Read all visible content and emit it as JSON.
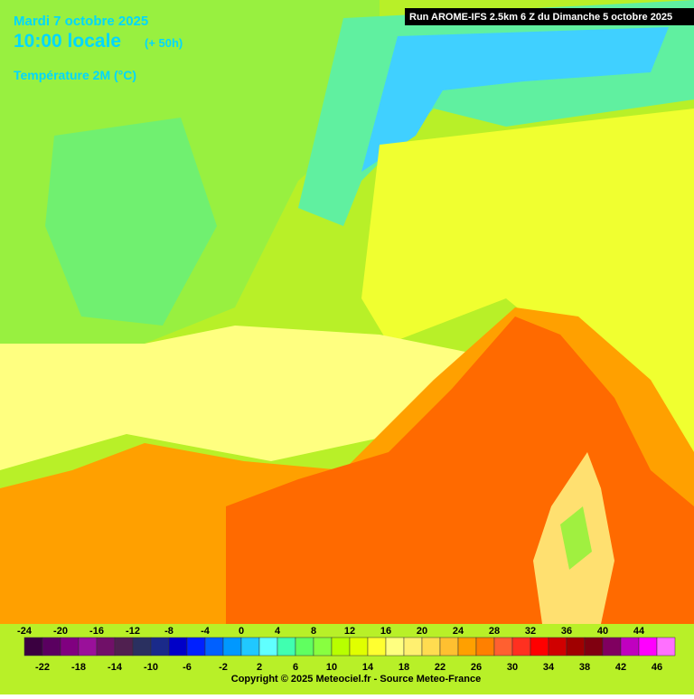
{
  "header": {
    "date": "Mardi 7 octobre 2025",
    "time": "10:00 locale",
    "lead": "(+ 50h)",
    "variable": "Température 2M (°C)",
    "run": "Run AROME-IFS 2.5km 6 Z du Dimanche 5 octobre 2025"
  },
  "legend": {
    "top_labels": [
      -24,
      -20,
      -16,
      -12,
      -8,
      -4,
      0,
      4,
      8,
      12,
      16,
      20,
      24,
      28,
      32,
      36,
      40,
      44
    ],
    "bottom_labels": [
      -22,
      -18,
      -14,
      -10,
      -6,
      -2,
      2,
      6,
      10,
      14,
      18,
      22,
      26,
      30,
      34,
      38,
      42,
      46
    ],
    "colors": [
      "#3a0040",
      "#5a0060",
      "#800080",
      "#9a109a",
      "#701068",
      "#502050",
      "#2a3060",
      "#1a2a8a",
      "#0000c8",
      "#0020ff",
      "#0060ff",
      "#0098ff",
      "#20c8ff",
      "#60ffff",
      "#40ffb0",
      "#60ff60",
      "#88ff40",
      "#b8ff00",
      "#e0ff00",
      "#ffff30",
      "#ffff80",
      "#fff070",
      "#ffdc50",
      "#ffc030",
      "#ffa000",
      "#ff8000",
      "#ff6030",
      "#ff3020",
      "#ff0000",
      "#d00000",
      "#a00000",
      "#800010",
      "#800060",
      "#c000c0",
      "#ff00ff",
      "#ff70ff"
    ]
  },
  "footer": {
    "copyright": "Copyright © 2025 Meteociel.fr - Source Meteo-France"
  }
}
